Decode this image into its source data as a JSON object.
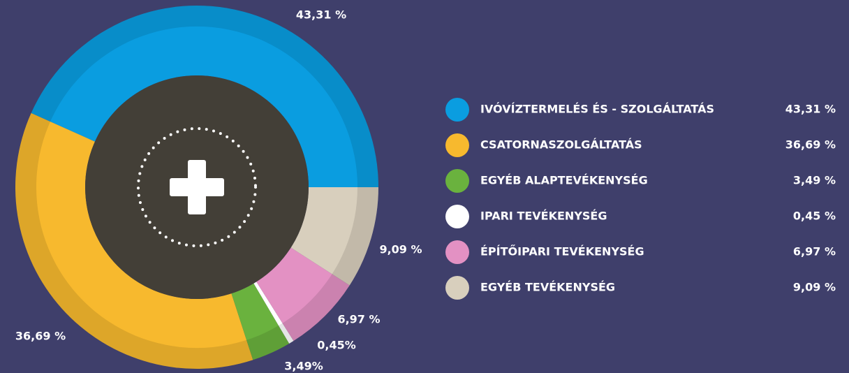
{
  "chart_data": {
    "type": "donut",
    "categories": [
      "IVÓVÍZTERMELÉS ÉS - SZOLGÁLTATÁS",
      "CSATORNASZOLGÁLTATÁS",
      "EGYÉB ALAPTEVÉKENYSÉG",
      "IPARI TEVÉKENYSÉG",
      "ÉPÍTŐIPARI TEVÉKENYSÉG",
      "EGYÉB TEVÉKENYSÉG"
    ],
    "values": [
      43.31,
      36.69,
      3.49,
      0.45,
      6.97,
      9.09
    ],
    "value_labels": [
      "43,31 %",
      "36,69 %",
      "3,49%",
      "0,45%",
      "6,97 %",
      "9,09 %"
    ],
    "legend_labels": [
      "43,31 %",
      "36,69 %",
      "3,49 %",
      "0,45 %",
      "6,97 %",
      "9,09 %"
    ],
    "colors": [
      "#0a9de0",
      "#f7b92e",
      "#6ab23e",
      "#ffffff",
      "#e391c3",
      "#d8cfbd"
    ]
  }
}
